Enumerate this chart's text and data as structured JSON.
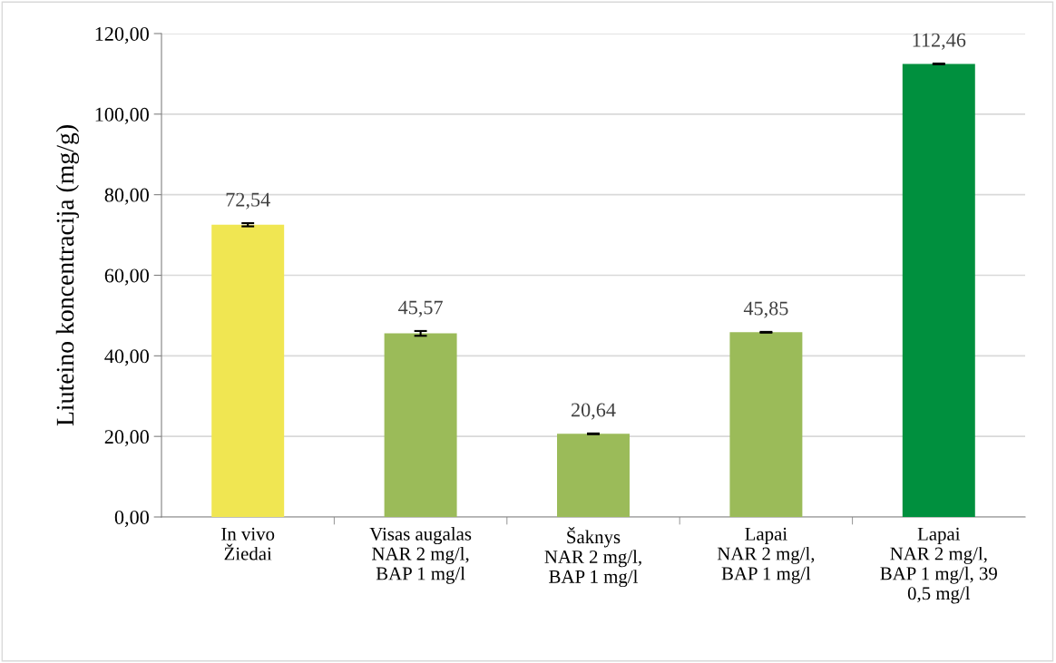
{
  "chart_data": {
    "type": "bar",
    "ylabel": "Liuteino koncentracija (mg/g)",
    "categories": [
      "In vivo\nŽiedai",
      "Visas augalas\nNAR 2 mg/l,\nBAP 1 mg/l",
      "Šaknys\nNAR 2 mg/l,\nBAP 1 mg/l",
      "Lapai\nNAR 2 mg/l,\nBAP 1 mg/l",
      "Lapai\nNAR 2 mg/l,\nBAP 1 mg/l, 39\n0,5 mg/l"
    ],
    "values": [
      72.54,
      45.57,
      20.64,
      45.85,
      112.46
    ],
    "colors": [
      "#f0e652",
      "#9bbb59",
      "#9bbb59",
      "#9bbb59",
      "#00903e"
    ],
    "errors": [
      0.4,
      0.6,
      0.1,
      0.1,
      0.1
    ],
    "value_labels": [
      "72,54",
      "45,57",
      "20,64",
      "45,85",
      "112,46"
    ],
    "ylim": [
      0,
      120
    ],
    "yticks": [
      {
        "value": 0,
        "label": "0,00"
      },
      {
        "value": 20,
        "label": "20,00"
      },
      {
        "value": 40,
        "label": "40,00"
      },
      {
        "value": 60,
        "label": "60,00"
      },
      {
        "value": 80,
        "label": "80,00"
      },
      {
        "value": 100,
        "label": "100,00"
      },
      {
        "value": 120,
        "label": "120,00"
      }
    ],
    "grid": "y",
    "legend": false
  }
}
